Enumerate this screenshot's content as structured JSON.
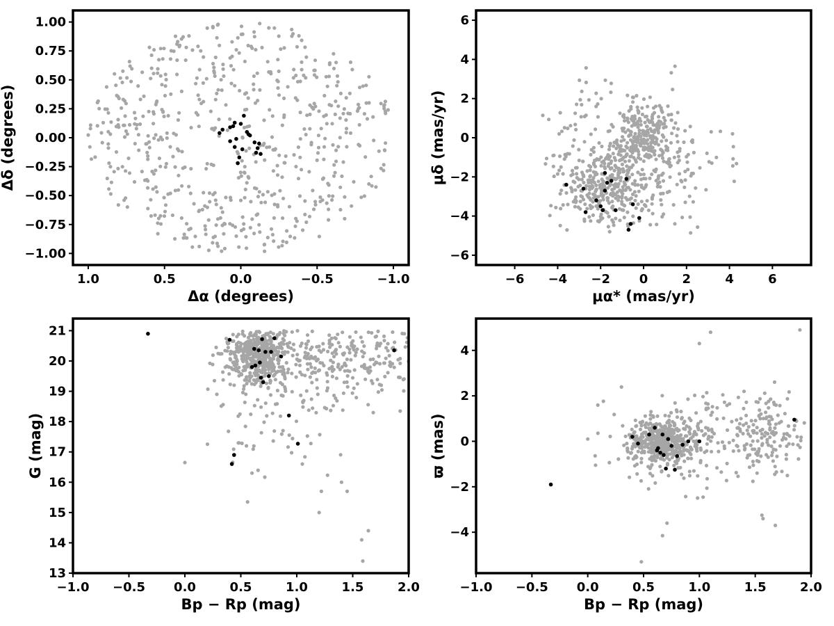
{
  "colors": {
    "field": "#a6a6a6",
    "members": "#000000"
  },
  "chart_data": [
    {
      "type": "scatter",
      "xlabel": "Δα (degrees)",
      "ylabel": "Δδ (degrees)",
      "xlim": [
        1.1,
        -1.1
      ],
      "ylim": [
        -1.1,
        1.1
      ],
      "xticks": [
        1.0,
        0.5,
        0.0,
        -0.5,
        -1.0
      ],
      "xtick_labels": [
        "1.0",
        "0.5",
        "0.0",
        "−0.5",
        "−1.0"
      ],
      "yticks": [
        -1.0,
        -0.75,
        -0.5,
        -0.25,
        0.0,
        0.25,
        0.5,
        0.75,
        1.0
      ],
      "ytick_labels": [
        "−1.00",
        "−0.75",
        "−0.50",
        "−0.25",
        "0.00",
        "0.25",
        "0.50",
        "0.75",
        "1.00"
      ],
      "field": {
        "distribution": "uniform disk",
        "center": [
          0,
          0
        ],
        "radius": 1.0,
        "n": 620
      },
      "members": {
        "x": [
          0.14,
          0.12,
          0.07,
          0.05,
          0.04,
          0.03,
          0.0,
          -0.02,
          -0.04,
          -0.06,
          -0.09,
          -0.11,
          -0.12,
          -0.13,
          0.04,
          -0.01,
          0.02,
          0.01,
          -0.05,
          0.07,
          -0.1
        ],
        "y": [
          0.04,
          0.07,
          0.09,
          0.1,
          0.13,
          -0.01,
          0.12,
          0.19,
          0.05,
          0.02,
          -0.04,
          -0.09,
          -0.05,
          -0.14,
          -0.08,
          -0.1,
          -0.22,
          -0.17,
          0.03,
          -0.03,
          -0.13
        ]
      }
    },
    {
      "type": "scatter",
      "xlabel": "μα* (mas/yr)",
      "ylabel": "μδ (mas/yr)",
      "xlim": [
        -7.8,
        7.8
      ],
      "ylim": [
        -6.5,
        6.5
      ],
      "xticks": [
        -6,
        -4,
        -2,
        0,
        2,
        4,
        6
      ],
      "xtick_labels": [
        "−6",
        "−4",
        "−2",
        "0",
        "2",
        "4",
        "6"
      ],
      "yticks": [
        -6,
        -4,
        -2,
        0,
        2,
        4,
        6
      ],
      "ytick_labels": [
        "−6",
        "−4",
        "−2",
        "0",
        "2",
        "4",
        "6"
      ],
      "field": {
        "clumps": [
          {
            "center": [
              0.0,
              0.0
            ],
            "sigma": [
              0.6,
              0.6
            ],
            "n": 180
          },
          {
            "center": [
              -1.8,
              -2.6
            ],
            "sigma": [
              1.0,
              1.0
            ],
            "n": 260
          },
          {
            "center": [
              -0.5,
              -1.0
            ],
            "sigma": [
              2.1,
              1.9
            ],
            "n": 330
          }
        ],
        "bounds": {
          "x": [
            -4.8,
            4.9
          ],
          "y": [
            -4.9,
            4.8
          ]
        }
      },
      "members": {
        "x": [
          -3.6,
          -2.8,
          -2.7,
          -2.2,
          -2.0,
          -1.9,
          -1.8,
          -1.7,
          -1.5,
          -1.3,
          -0.8,
          -0.6,
          -0.5,
          -0.2,
          -0.7,
          -1.8
        ],
        "y": [
          -2.4,
          -2.6,
          -3.8,
          -3.2,
          -3.5,
          -3.7,
          -1.8,
          -2.3,
          -2.2,
          -3.7,
          -2.1,
          -4.4,
          -3.4,
          -4.1,
          -4.7,
          -2.7
        ]
      }
    },
    {
      "type": "scatter",
      "xlabel": "Bp − Rp (mag)",
      "ylabel": "G (mag)",
      "xlim": [
        -1.0,
        2.0
      ],
      "ylim": [
        13.0,
        21.4
      ],
      "xticks": [
        -1.0,
        -0.5,
        0.0,
        0.5,
        1.0,
        1.5,
        2.0
      ],
      "xtick_labels": [
        "−1.0",
        "−0.5",
        "0.0",
        "0.5",
        "1.0",
        "1.5",
        "2.0"
      ],
      "yticks": [
        13,
        14,
        15,
        16,
        17,
        18,
        19,
        20,
        21
      ],
      "ytick_labels": [
        "13",
        "14",
        "15",
        "16",
        "17",
        "18",
        "19",
        "20",
        "21"
      ],
      "field": {
        "clumps": [
          {
            "center": [
              0.65,
              20.3
            ],
            "sigma": [
              0.12,
              0.45
            ],
            "n": 380
          },
          {
            "center": [
              0.9,
              20.1
            ],
            "sigma": [
              0.35,
              0.7
            ],
            "n": 220
          },
          {
            "center": [
              1.6,
              20.2
            ],
            "sigma": [
              0.25,
              0.7
            ],
            "n": 130
          },
          {
            "center": [
              0.9,
              18.0
            ],
            "sigma": [
              0.3,
              0.9
            ],
            "n": 60
          }
        ],
        "bounds": {
          "x": [
            0.15,
            2.0
          ],
          "y": [
            16.0,
            21.0
          ]
        },
        "extra_x": [
          0.0,
          0.56,
          0.6,
          1.2,
          1.22,
          1.45,
          1.58,
          1.59,
          1.64,
          0.55,
          1.4,
          1.05
        ],
        "extra_y": [
          16.65,
          15.35,
          16.3,
          15.0,
          15.7,
          15.7,
          14.1,
          13.4,
          14.4,
          17.2,
          16.0,
          16.6
        ]
      },
      "members": {
        "x": [
          -0.33,
          0.4,
          0.62,
          0.66,
          0.67,
          0.69,
          0.72,
          0.77,
          0.8,
          0.63,
          0.6,
          0.68,
          0.75,
          0.86,
          0.93,
          1.01,
          0.42,
          0.44,
          1.87,
          0.7
        ],
        "y": [
          20.9,
          20.7,
          20.4,
          20.35,
          19.95,
          20.72,
          20.3,
          20.3,
          20.75,
          19.85,
          19.8,
          19.45,
          19.5,
          20.15,
          18.2,
          17.27,
          16.6,
          16.9,
          20.35,
          19.3
        ]
      }
    },
    {
      "type": "scatter",
      "xlabel": "Bp − Rp (mag)",
      "ylabel": "ϖ (mas)",
      "xlim": [
        -1.0,
        2.0
      ],
      "ylim": [
        -5.8,
        5.4
      ],
      "xticks": [
        -1.0,
        -0.5,
        0.0,
        0.5,
        1.0,
        1.5,
        2.0
      ],
      "xtick_labels": [
        "−1.0",
        "−0.5",
        "0.0",
        "0.5",
        "1.0",
        "1.5",
        "2.0"
      ],
      "yticks": [
        -4,
        -2,
        0,
        2,
        4
      ],
      "ytick_labels": [
        "−4",
        "−2",
        "0",
        "2",
        "4"
      ],
      "field": {
        "clumps": [
          {
            "center": [
              0.65,
              0.0
            ],
            "sigma": [
              0.14,
              0.45
            ],
            "n": 420
          },
          {
            "center": [
              0.85,
              0.0
            ],
            "sigma": [
              0.35,
              1.0
            ],
            "n": 200
          },
          {
            "center": [
              1.6,
              0.3
            ],
            "sigma": [
              0.25,
              0.9
            ],
            "n": 150
          }
        ],
        "bounds": {
          "x": [
            0.0,
            2.0
          ],
          "y": [
            -5.3,
            5.0
          ]
        },
        "extra_x": [
          0.0,
          0.48,
          0.67,
          0.71,
          1.0,
          1.1,
          1.9,
          1.56,
          1.57,
          1.68,
          0.07
        ],
        "extra_y": [
          0.1,
          -5.3,
          -4.15,
          -3.6,
          4.3,
          4.8,
          4.9,
          -3.25,
          -3.4,
          -3.7,
          -1.05
        ]
      },
      "members": {
        "x": [
          -0.33,
          0.4,
          0.45,
          0.55,
          0.6,
          0.62,
          0.65,
          0.67,
          0.7,
          0.72,
          0.75,
          0.78,
          0.8,
          0.85,
          0.9,
          1.0,
          1.85,
          0.68,
          0.63
        ],
        "y": [
          -1.9,
          0.2,
          -0.1,
          0.3,
          0.6,
          -0.4,
          -0.5,
          0.3,
          -1.2,
          0.1,
          -0.2,
          -1.25,
          -0.65,
          -0.15,
          0.0,
          0.0,
          0.95,
          -0.6,
          -0.3
        ]
      }
    }
  ]
}
